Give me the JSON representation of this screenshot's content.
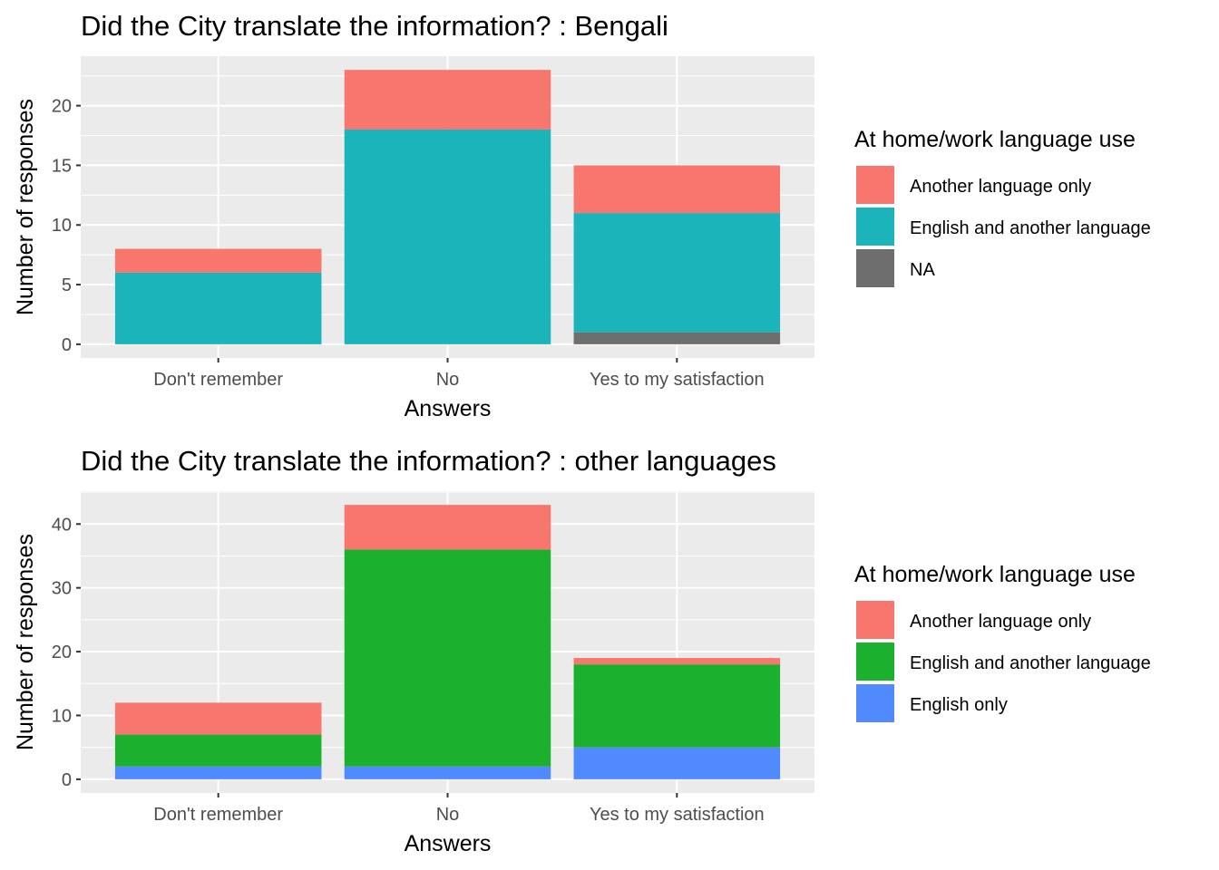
{
  "chart_data": [
    {
      "type": "bar",
      "stacked": true,
      "title": "Did the City translate the information? : Bengali",
      "xlabel": "Answers",
      "ylabel": "Number of responses",
      "categories": [
        "Don't remember",
        "No",
        "Yes to my satisfaction"
      ],
      "ylim": [
        0,
        24
      ],
      "yticks": [
        0,
        5,
        10,
        15,
        20
      ],
      "grid": true,
      "legend": {
        "title": "At home/work language use",
        "placement": "right",
        "entries": [
          "Another language only",
          "English and another language",
          "NA"
        ]
      },
      "series": [
        {
          "name": "Another language only",
          "color": "#F8766D",
          "values": [
            2,
            5,
            4
          ]
        },
        {
          "name": "English and another language",
          "color": "#1CB4BB",
          "values": [
            6,
            18,
            10
          ]
        },
        {
          "name": "NA",
          "color": "#6E6E6E",
          "values": [
            0,
            0,
            1
          ]
        }
      ],
      "stack_order": [
        "NA",
        "English and another language",
        "Another language only"
      ]
    },
    {
      "type": "bar",
      "stacked": true,
      "title": "Did the City translate the information? : other languages",
      "xlabel": "Answers",
      "ylabel": "Number of responses",
      "categories": [
        "Don't remember",
        "No",
        "Yes to my satisfaction"
      ],
      "ylim": [
        0,
        45
      ],
      "yticks": [
        0,
        10,
        20,
        30,
        40
      ],
      "grid": true,
      "legend": {
        "title": "At home/work language use",
        "placement": "right",
        "entries": [
          "Another language only",
          "English and another language",
          "English only"
        ]
      },
      "series": [
        {
          "name": "Another language only",
          "color": "#F8766D",
          "values": [
            5,
            7,
            1
          ]
        },
        {
          "name": "English and another language",
          "color": "#1BB12F",
          "values": [
            5,
            34,
            13
          ]
        },
        {
          "name": "English only",
          "color": "#5189FF",
          "values": [
            2,
            2,
            5
          ]
        }
      ],
      "stack_order": [
        "English only",
        "English and another language",
        "Another language only"
      ]
    }
  ]
}
